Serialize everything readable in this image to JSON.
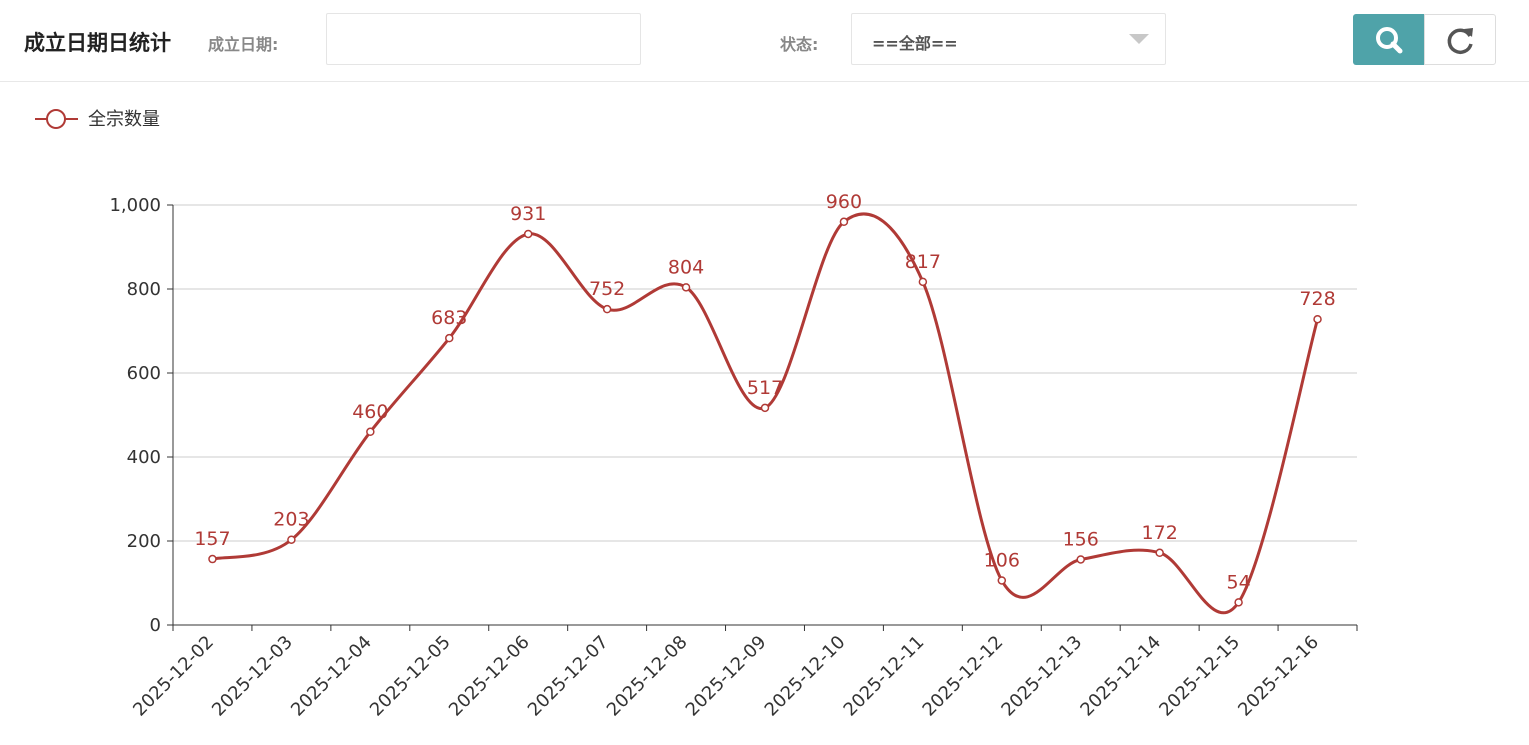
{
  "header": {
    "title": "成立日期日统计",
    "date_label": "成立日期:",
    "status_label": "状态:",
    "status_value": "==全部=="
  },
  "chart_data": {
    "type": "line",
    "smooth": true,
    "grid": true,
    "legend": "top-left",
    "categories": [
      "2025-12-02",
      "2025-12-03",
      "2025-12-04",
      "2025-12-05",
      "2025-12-06",
      "2025-12-07",
      "2025-12-08",
      "2025-12-09",
      "2025-12-10",
      "2025-12-11",
      "2025-12-12",
      "2025-12-13",
      "2025-12-14",
      "2025-12-15",
      "2025-12-16"
    ],
    "series": [
      {
        "name": "全宗数量",
        "color": "#b03a36",
        "values": [
          157,
          203,
          460,
          683,
          931,
          752,
          804,
          517,
          960,
          817,
          106,
          156,
          172,
          54,
          728
        ]
      }
    ],
    "ylim": [
      0,
      1000
    ],
    "yticks": [
      0,
      200,
      400,
      600,
      800,
      {
        "value": 1000,
        "label": "1,000"
      }
    ]
  }
}
